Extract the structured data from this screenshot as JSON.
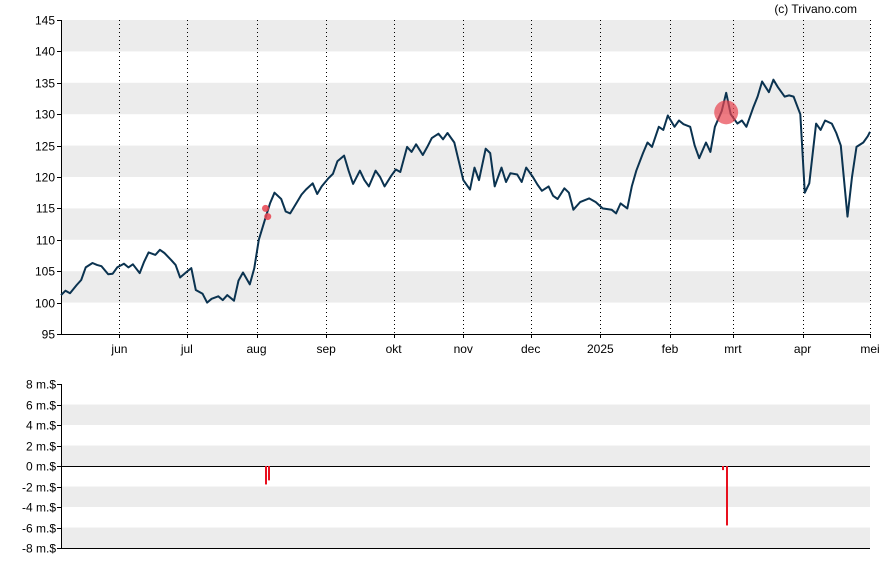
{
  "credit": "(c) Trivano.com",
  "colors": {
    "price_line": "#0b3350",
    "band": "#ececec",
    "background": "#ffffff",
    "axis": "#000000",
    "insider_marker": "#e8434f",
    "volume_bar": "#e8101e"
  },
  "chart_data": [
    {
      "type": "line",
      "name": "price",
      "ylim": [
        95,
        145
      ],
      "y_ticks": [
        95,
        100,
        105,
        110,
        115,
        120,
        125,
        130,
        135,
        140,
        145
      ],
      "x_range": [
        "2024-05-06",
        "2025-05-01"
      ],
      "month_ticks": [
        {
          "date": "2024-06-01",
          "label": "jun"
        },
        {
          "date": "2024-07-01",
          "label": "jul"
        },
        {
          "date": "2024-08-01",
          "label": "aug"
        },
        {
          "date": "2024-09-01",
          "label": "sep"
        },
        {
          "date": "2024-10-01",
          "label": "okt"
        },
        {
          "date": "2024-11-01",
          "label": "nov"
        },
        {
          "date": "2024-12-01",
          "label": "dec"
        },
        {
          "date": "2025-01-01",
          "label": "2025"
        },
        {
          "date": "2025-02-01",
          "label": "feb"
        },
        {
          "date": "2025-03-01",
          "label": "mrt"
        },
        {
          "date": "2025-04-01",
          "label": "apr"
        },
        {
          "date": "2025-05-01",
          "label": "mei"
        }
      ],
      "grid": "vertical dotted at month ticks, alternating horizontal bands",
      "series": [
        {
          "points": [
            [
              "2024-05-06",
              101.2
            ],
            [
              "2024-05-08",
              101.9
            ],
            [
              "2024-05-10",
              101.5
            ],
            [
              "2024-05-13",
              102.8
            ],
            [
              "2024-05-15",
              103.6
            ],
            [
              "2024-05-17",
              105.6
            ],
            [
              "2024-05-20",
              106.3
            ],
            [
              "2024-05-22",
              106.0
            ],
            [
              "2024-05-24",
              105.8
            ],
            [
              "2024-05-27",
              104.5
            ],
            [
              "2024-05-29",
              104.6
            ],
            [
              "2024-05-31",
              105.6
            ],
            [
              "2024-06-03",
              106.2
            ],
            [
              "2024-06-05",
              105.6
            ],
            [
              "2024-06-07",
              106.1
            ],
            [
              "2024-06-10",
              104.7
            ],
            [
              "2024-06-12",
              106.5
            ],
            [
              "2024-06-14",
              108.0
            ],
            [
              "2024-06-17",
              107.6
            ],
            [
              "2024-06-19",
              108.4
            ],
            [
              "2024-06-21",
              107.9
            ],
            [
              "2024-06-24",
              106.8
            ],
            [
              "2024-06-26",
              106.0
            ],
            [
              "2024-06-28",
              104.0
            ],
            [
              "2024-07-01",
              104.9
            ],
            [
              "2024-07-03",
              105.5
            ],
            [
              "2024-07-05",
              102.0
            ],
            [
              "2024-07-08",
              101.4
            ],
            [
              "2024-07-10",
              100.0
            ],
            [
              "2024-07-12",
              100.6
            ],
            [
              "2024-07-15",
              101.0
            ],
            [
              "2024-07-17",
              100.4
            ],
            [
              "2024-07-19",
              101.2
            ],
            [
              "2024-07-22",
              100.3
            ],
            [
              "2024-07-24",
              103.5
            ],
            [
              "2024-07-26",
              104.8
            ],
            [
              "2024-07-29",
              102.9
            ],
            [
              "2024-07-31",
              105.5
            ],
            [
              "2024-08-02",
              110.0
            ],
            [
              "2024-08-05",
              113.5
            ],
            [
              "2024-08-07",
              115.8
            ],
            [
              "2024-08-09",
              117.5
            ],
            [
              "2024-08-12",
              116.5
            ],
            [
              "2024-08-14",
              114.5
            ],
            [
              "2024-08-16",
              114.2
            ],
            [
              "2024-08-19",
              116.0
            ],
            [
              "2024-08-21",
              117.2
            ],
            [
              "2024-08-23",
              118.0
            ],
            [
              "2024-08-26",
              119.0
            ],
            [
              "2024-08-28",
              117.3
            ],
            [
              "2024-08-30",
              118.5
            ],
            [
              "2024-09-02",
              119.8
            ],
            [
              "2024-09-04",
              120.5
            ],
            [
              "2024-09-06",
              122.5
            ],
            [
              "2024-09-09",
              123.4
            ],
            [
              "2024-09-11",
              121.0
            ],
            [
              "2024-09-13",
              118.9
            ],
            [
              "2024-09-16",
              121.0
            ],
            [
              "2024-09-18",
              119.5
            ],
            [
              "2024-09-20",
              118.5
            ],
            [
              "2024-09-23",
              121.0
            ],
            [
              "2024-09-25",
              120.0
            ],
            [
              "2024-09-27",
              118.5
            ],
            [
              "2024-09-30",
              120.2
            ],
            [
              "2024-10-02",
              121.2
            ],
            [
              "2024-10-04",
              120.8
            ],
            [
              "2024-10-07",
              124.8
            ],
            [
              "2024-10-09",
              124.0
            ],
            [
              "2024-10-11",
              125.2
            ],
            [
              "2024-10-14",
              123.5
            ],
            [
              "2024-10-16",
              124.8
            ],
            [
              "2024-10-18",
              126.2
            ],
            [
              "2024-10-21",
              126.9
            ],
            [
              "2024-10-23",
              126.0
            ],
            [
              "2024-10-25",
              127.0
            ],
            [
              "2024-10-28",
              125.5
            ],
            [
              "2024-10-30",
              122.5
            ],
            [
              "2024-11-01",
              119.5
            ],
            [
              "2024-11-04",
              118.0
            ],
            [
              "2024-11-06",
              121.5
            ],
            [
              "2024-11-08",
              119.5
            ],
            [
              "2024-11-11",
              124.5
            ],
            [
              "2024-11-13",
              123.8
            ],
            [
              "2024-11-15",
              118.5
            ],
            [
              "2024-11-18",
              121.5
            ],
            [
              "2024-11-20",
              119.2
            ],
            [
              "2024-11-22",
              120.6
            ],
            [
              "2024-11-25",
              120.4
            ],
            [
              "2024-11-27",
              119.2
            ],
            [
              "2024-11-29",
              121.5
            ],
            [
              "2024-12-02",
              120.0
            ],
            [
              "2024-12-04",
              118.8
            ],
            [
              "2024-12-06",
              117.8
            ],
            [
              "2024-12-09",
              118.5
            ],
            [
              "2024-12-11",
              117.0
            ],
            [
              "2024-12-13",
              116.5
            ],
            [
              "2024-12-16",
              118.2
            ],
            [
              "2024-12-18",
              117.5
            ],
            [
              "2024-12-20",
              114.8
            ],
            [
              "2024-12-23",
              116.0
            ],
            [
              "2024-12-27",
              116.6
            ],
            [
              "2024-12-30",
              116.0
            ],
            [
              "2025-01-02",
              115.0
            ],
            [
              "2025-01-06",
              114.8
            ],
            [
              "2025-01-08",
              114.2
            ],
            [
              "2025-01-10",
              115.8
            ],
            [
              "2025-01-13",
              115.0
            ],
            [
              "2025-01-15",
              118.5
            ],
            [
              "2025-01-17",
              121.0
            ],
            [
              "2025-01-20",
              123.8
            ],
            [
              "2025-01-22",
              125.5
            ],
            [
              "2025-01-24",
              124.8
            ],
            [
              "2025-01-27",
              128.0
            ],
            [
              "2025-01-29",
              127.5
            ],
            [
              "2025-01-31",
              129.8
            ],
            [
              "2025-02-03",
              128.0
            ],
            [
              "2025-02-05",
              129.0
            ],
            [
              "2025-02-07",
              128.4
            ],
            [
              "2025-02-10",
              128.0
            ],
            [
              "2025-02-12",
              125.0
            ],
            [
              "2025-02-14",
              123.0
            ],
            [
              "2025-02-17",
              125.5
            ],
            [
              "2025-02-19",
              124.0
            ],
            [
              "2025-02-21",
              128.0
            ],
            [
              "2025-02-24",
              130.5
            ],
            [
              "2025-02-26",
              133.4
            ],
            [
              "2025-02-28",
              130.0
            ],
            [
              "2025-03-03",
              128.5
            ],
            [
              "2025-03-05",
              129.0
            ],
            [
              "2025-03-07",
              128.0
            ],
            [
              "2025-03-10",
              131.0
            ],
            [
              "2025-03-12",
              132.8
            ],
            [
              "2025-03-14",
              135.2
            ],
            [
              "2025-03-17",
              133.5
            ],
            [
              "2025-03-19",
              135.5
            ],
            [
              "2025-03-21",
              134.3
            ],
            [
              "2025-03-24",
              132.8
            ],
            [
              "2025-03-26",
              133.0
            ],
            [
              "2025-03-28",
              132.8
            ],
            [
              "2025-03-31",
              130.0
            ],
            [
              "2025-04-02",
              117.5
            ],
            [
              "2025-04-04",
              119.0
            ],
            [
              "2025-04-07",
              128.5
            ],
            [
              "2025-04-09",
              127.5
            ],
            [
              "2025-04-11",
              129.0
            ],
            [
              "2025-04-14",
              128.5
            ],
            [
              "2025-04-16",
              127.0
            ],
            [
              "2025-04-18",
              125.0
            ],
            [
              "2025-04-21",
              113.7
            ],
            [
              "2025-04-23",
              120.0
            ],
            [
              "2025-04-25",
              124.8
            ],
            [
              "2025-04-28",
              125.5
            ],
            [
              "2025-04-30",
              126.5
            ],
            [
              "2025-05-01",
              127.2
            ]
          ]
        }
      ],
      "insider_trades": [
        {
          "date": "2024-08-05",
          "price": 115.0,
          "size": "small"
        },
        {
          "date": "2024-08-06",
          "price": 113.7,
          "size": "small"
        },
        {
          "date": "2025-02-26",
          "price": 130.3,
          "size": "large"
        }
      ]
    },
    {
      "type": "bar",
      "name": "insider net volume",
      "unit": "m.$",
      "ylim": [
        -8,
        8
      ],
      "y_ticks": [
        {
          "value": 8,
          "label": "8 m.$"
        },
        {
          "value": 6,
          "label": "6 m.$"
        },
        {
          "value": 4,
          "label": "4 m.$"
        },
        {
          "value": 2,
          "label": "2 m.$"
        },
        {
          "value": 0,
          "label": "0 m.$"
        },
        {
          "value": -2,
          "label": "-2 m.$"
        },
        {
          "value": -4,
          "label": "-4 m.$"
        },
        {
          "value": -6,
          "label": "-6 m.$"
        },
        {
          "value": -8,
          "label": "-8 m.$"
        }
      ],
      "bars": [
        {
          "date": "2024-08-05",
          "value": -1.8
        },
        {
          "date": "2024-08-06",
          "value": -1.4
        },
        {
          "date": "2025-02-24",
          "value": -0.4
        },
        {
          "date": "2025-02-26",
          "value": -5.8
        }
      ]
    }
  ]
}
